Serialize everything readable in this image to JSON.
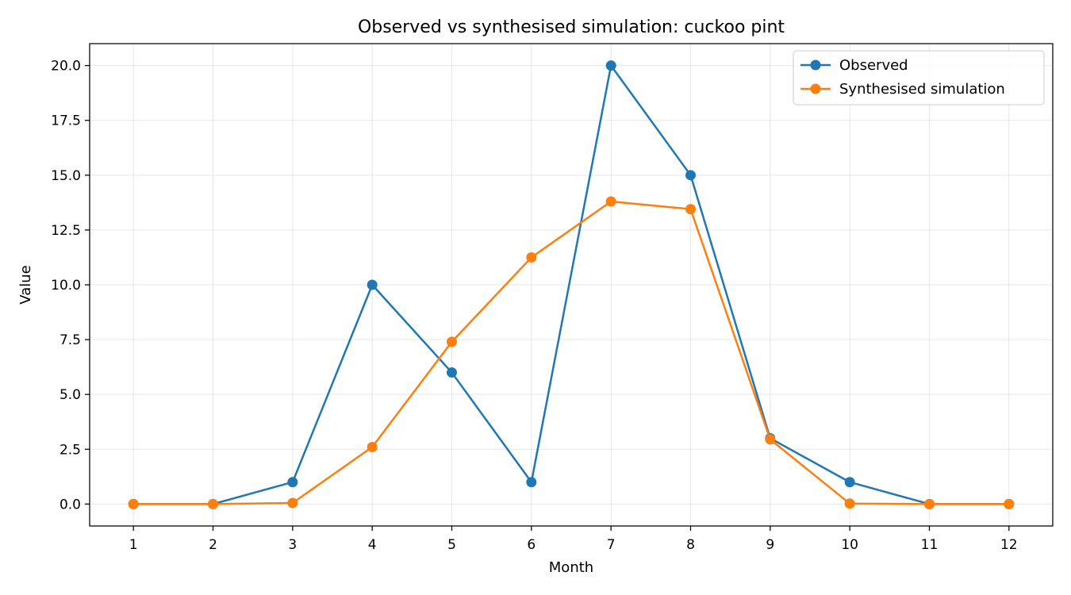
{
  "chart_data": {
    "type": "line",
    "title": "Observed vs synthesised simulation: cuckoo pint",
    "xlabel": "Month",
    "ylabel": "Value",
    "x": [
      1,
      2,
      3,
      4,
      5,
      6,
      7,
      8,
      9,
      10,
      11,
      12
    ],
    "xlim": [
      0.45,
      12.55
    ],
    "ylim": [
      -1.0,
      21.0
    ],
    "yticks": [
      0.0,
      2.5,
      5.0,
      7.5,
      10.0,
      12.5,
      15.0,
      17.5,
      20.0
    ],
    "ytick_labels": [
      "0.0",
      "2.5",
      "5.0",
      "7.5",
      "10.0",
      "12.5",
      "15.0",
      "17.5",
      "20.0"
    ],
    "xtick_labels": [
      "1",
      "2",
      "3",
      "4",
      "5",
      "6",
      "7",
      "8",
      "9",
      "10",
      "11",
      "12"
    ],
    "grid": true,
    "legend_position": "top-right",
    "series": [
      {
        "name": "Observed",
        "color": "#1f77b4",
        "values": [
          0,
          0,
          1,
          10,
          6,
          1,
          20,
          15,
          3,
          1,
          0,
          0
        ]
      },
      {
        "name": "Synthesised simulation",
        "color": "#ff7f0e",
        "values": [
          0,
          0,
          0.05,
          2.6,
          7.4,
          11.25,
          13.8,
          13.45,
          2.95,
          0.02,
          0,
          0
        ]
      }
    ]
  }
}
